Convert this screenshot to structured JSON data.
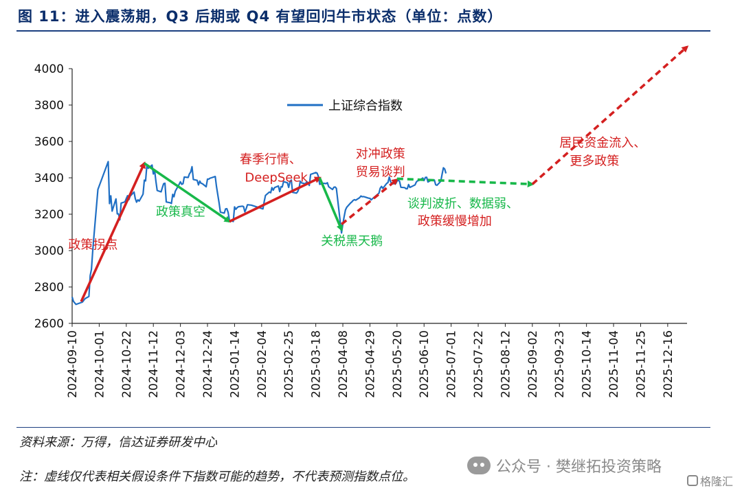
{
  "figure": {
    "title": "图 11：进入震荡期，Q3 后期或 Q4 有望回归牛市状态（单位：点数）",
    "source": "资料来源：万得，信达证券研发中心",
    "note": "注：虚线仅代表相关假设条件下指数可能的趋势，不代表预测指数点位。",
    "watermark": "公众号 · 樊继拓投资策略",
    "corner_label": "格隆汇",
    "watermark_icon": "wechat-icon",
    "corner_icon": "gelonghui-icon"
  },
  "chart_data": {
    "type": "line",
    "ylim": [
      2600,
      4000
    ],
    "yticks": [
      "2600",
      "2800",
      "3000",
      "3200",
      "3400",
      "3600",
      "3800",
      "4000"
    ],
    "x_start": "2024-09-10",
    "x_end": "2025-12-31",
    "xticks": [
      "2024-09-10",
      "2024-10-01",
      "2024-10-22",
      "2024-11-12",
      "2024-12-03",
      "2024-12-24",
      "2025-01-14",
      "2025-02-04",
      "2025-02-25",
      "2025-03-18",
      "2025-04-08",
      "2025-04-29",
      "2025-05-20",
      "2025-06-10",
      "2025-07-01",
      "2025-07-22",
      "2025-08-12",
      "2025-09-02",
      "2025-09-23",
      "2025-10-14",
      "2025-11-04",
      "2025-11-25",
      "2025-12-16"
    ],
    "legend": {
      "label": "上证综合指数",
      "position": "top-center"
    },
    "series": [
      {
        "name": "上证综合指数",
        "color": "#1f6fc4",
        "points": [
          [
            "2024-09-10",
            2745
          ],
          [
            "2024-09-11",
            2721
          ],
          [
            "2024-09-13",
            2704
          ],
          [
            "2024-09-18",
            2717
          ],
          [
            "2024-09-20",
            2736
          ],
          [
            "2024-09-23",
            2748
          ],
          [
            "2024-09-24",
            2863
          ],
          [
            "2024-09-25",
            2897
          ],
          [
            "2024-09-26",
            3000
          ],
          [
            "2024-09-27",
            3087
          ],
          [
            "2024-09-30",
            3336
          ],
          [
            "2024-10-08",
            3489
          ],
          [
            "2024-10-09",
            3258
          ],
          [
            "2024-10-10",
            3301
          ],
          [
            "2024-10-11",
            3217
          ],
          [
            "2024-10-14",
            3284
          ],
          [
            "2024-10-15",
            3202
          ],
          [
            "2024-10-16",
            3202
          ],
          [
            "2024-10-17",
            3169
          ],
          [
            "2024-10-18",
            3261
          ],
          [
            "2024-10-21",
            3268
          ],
          [
            "2024-10-22",
            3286
          ],
          [
            "2024-10-23",
            3302
          ],
          [
            "2024-10-24",
            3280
          ],
          [
            "2024-10-25",
            3299
          ],
          [
            "2024-10-28",
            3322
          ],
          [
            "2024-10-29",
            3286
          ],
          [
            "2024-10-30",
            3266
          ],
          [
            "2024-10-31",
            3279
          ],
          [
            "2024-11-01",
            3272
          ],
          [
            "2024-11-04",
            3310
          ],
          [
            "2024-11-05",
            3387
          ],
          [
            "2024-11-06",
            3383
          ],
          [
            "2024-11-07",
            3470
          ],
          [
            "2024-11-08",
            3452
          ],
          [
            "2024-11-11",
            3470
          ],
          [
            "2024-11-12",
            3421
          ],
          [
            "2024-11-13",
            3439
          ],
          [
            "2024-11-14",
            3379
          ],
          [
            "2024-11-15",
            3330
          ],
          [
            "2024-11-18",
            3323
          ],
          [
            "2024-11-19",
            3346
          ],
          [
            "2024-11-20",
            3368
          ],
          [
            "2024-11-21",
            3370
          ],
          [
            "2024-11-22",
            3267
          ],
          [
            "2024-11-25",
            3263
          ],
          [
            "2024-11-26",
            3259
          ],
          [
            "2024-11-27",
            3309
          ],
          [
            "2024-11-28",
            3296
          ],
          [
            "2024-11-29",
            3326
          ],
          [
            "2024-12-02",
            3364
          ],
          [
            "2024-12-03",
            3378
          ],
          [
            "2024-12-04",
            3364
          ],
          [
            "2024-12-05",
            3368
          ],
          [
            "2024-12-06",
            3404
          ],
          [
            "2024-12-09",
            3402
          ],
          [
            "2024-12-10",
            3422
          ],
          [
            "2024-12-11",
            3432
          ],
          [
            "2024-12-12",
            3461
          ],
          [
            "2024-12-13",
            3391
          ],
          [
            "2024-12-16",
            3386
          ],
          [
            "2024-12-17",
            3361
          ],
          [
            "2024-12-18",
            3382
          ],
          [
            "2024-12-19",
            3370
          ],
          [
            "2024-12-20",
            3368
          ],
          [
            "2024-12-23",
            3351
          ],
          [
            "2024-12-24",
            3393
          ],
          [
            "2024-12-25",
            3393
          ],
          [
            "2024-12-26",
            3398
          ],
          [
            "2024-12-27",
            3400
          ],
          [
            "2024-12-30",
            3407
          ],
          [
            "2024-12-31",
            3352
          ],
          [
            "2025-01-02",
            3262
          ],
          [
            "2025-01-03",
            3211
          ],
          [
            "2025-01-06",
            3206
          ],
          [
            "2025-01-07",
            3229
          ],
          [
            "2025-01-08",
            3230
          ],
          [
            "2025-01-09",
            3211
          ],
          [
            "2025-01-10",
            3168
          ],
          [
            "2025-01-13",
            3160
          ],
          [
            "2025-01-14",
            3240
          ],
          [
            "2025-01-15",
            3227
          ],
          [
            "2025-01-16",
            3236
          ],
          [
            "2025-01-17",
            3241
          ],
          [
            "2025-01-20",
            3244
          ],
          [
            "2025-01-21",
            3242
          ],
          [
            "2025-01-22",
            3213
          ],
          [
            "2025-01-23",
            3230
          ],
          [
            "2025-01-24",
            3252
          ],
          [
            "2025-01-27",
            3250
          ],
          [
            "2025-02-05",
            3229
          ],
          [
            "2025-02-06",
            3270
          ],
          [
            "2025-02-07",
            3303
          ],
          [
            "2025-02-10",
            3322
          ],
          [
            "2025-02-11",
            3318
          ],
          [
            "2025-02-12",
            3346
          ],
          [
            "2025-02-13",
            3332
          ],
          [
            "2025-02-14",
            3346
          ],
          [
            "2025-02-17",
            3355
          ],
          [
            "2025-02-18",
            3324
          ],
          [
            "2025-02-19",
            3351
          ],
          [
            "2025-02-20",
            3350
          ],
          [
            "2025-02-21",
            3379
          ],
          [
            "2025-02-24",
            3373
          ],
          [
            "2025-02-25",
            3347
          ],
          [
            "2025-02-26",
            3380
          ],
          [
            "2025-02-27",
            3388
          ],
          [
            "2025-02-28",
            3320
          ],
          [
            "2025-03-03",
            3316
          ],
          [
            "2025-03-04",
            3325
          ],
          [
            "2025-03-05",
            3342
          ],
          [
            "2025-03-06",
            3381
          ],
          [
            "2025-03-07",
            3372
          ],
          [
            "2025-03-10",
            3367
          ],
          [
            "2025-03-11",
            3379
          ],
          [
            "2025-03-12",
            3372
          ],
          [
            "2025-03-13",
            3358
          ],
          [
            "2025-03-14",
            3419
          ],
          [
            "2025-03-17",
            3426
          ],
          [
            "2025-03-18",
            3429
          ],
          [
            "2025-03-19",
            3426
          ],
          [
            "2025-03-20",
            3408
          ],
          [
            "2025-03-21",
            3364
          ],
          [
            "2025-03-24",
            3370
          ],
          [
            "2025-03-25",
            3369
          ],
          [
            "2025-03-26",
            3368
          ],
          [
            "2025-03-27",
            3373
          ],
          [
            "2025-03-28",
            3351
          ],
          [
            "2025-03-31",
            3336
          ],
          [
            "2025-04-01",
            3348
          ],
          [
            "2025-04-02",
            3350
          ],
          [
            "2025-04-03",
            3342
          ],
          [
            "2025-04-07",
            3097
          ],
          [
            "2025-04-08",
            3145
          ],
          [
            "2025-04-09",
            3186
          ],
          [
            "2025-04-10",
            3223
          ],
          [
            "2025-04-11",
            3238
          ],
          [
            "2025-04-14",
            3262
          ],
          [
            "2025-04-15",
            3268
          ],
          [
            "2025-04-16",
            3276
          ],
          [
            "2025-04-17",
            3280
          ],
          [
            "2025-04-18",
            3277
          ],
          [
            "2025-04-21",
            3291
          ],
          [
            "2025-04-22",
            3300
          ],
          [
            "2025-04-23",
            3296
          ],
          [
            "2025-04-24",
            3297
          ],
          [
            "2025-04-25",
            3295
          ],
          [
            "2025-04-28",
            3288
          ],
          [
            "2025-04-29",
            3287
          ],
          [
            "2025-04-30",
            3279
          ],
          [
            "2025-05-06",
            3316
          ],
          [
            "2025-05-07",
            3343
          ],
          [
            "2025-05-08",
            3353
          ],
          [
            "2025-05-09",
            3342
          ],
          [
            "2025-05-12",
            3369
          ],
          [
            "2025-05-13",
            3374
          ],
          [
            "2025-05-14",
            3404
          ],
          [
            "2025-05-15",
            3380
          ],
          [
            "2025-05-16",
            3367
          ],
          [
            "2025-05-19",
            3368
          ],
          [
            "2025-05-20",
            3381
          ],
          [
            "2025-05-21",
            3388
          ],
          [
            "2025-05-22",
            3380
          ],
          [
            "2025-05-23",
            3348
          ],
          [
            "2025-05-26",
            3346
          ],
          [
            "2025-05-27",
            3340
          ],
          [
            "2025-05-28",
            3340
          ],
          [
            "2025-05-29",
            3363
          ],
          [
            "2025-05-30",
            3347
          ],
          [
            "2025-06-03",
            3361
          ],
          [
            "2025-06-04",
            3377
          ],
          [
            "2025-06-05",
            3384
          ],
          [
            "2025-06-06",
            3385
          ],
          [
            "2025-06-09",
            3399
          ],
          [
            "2025-06-10",
            3385
          ],
          [
            "2025-06-11",
            3402
          ],
          [
            "2025-06-12",
            3403
          ],
          [
            "2025-06-13",
            3377
          ],
          [
            "2025-06-16",
            3389
          ],
          [
            "2025-06-17",
            3387
          ],
          [
            "2025-06-18",
            3388
          ],
          [
            "2025-06-19",
            3362
          ],
          [
            "2025-06-20",
            3359
          ],
          [
            "2025-06-23",
            3381
          ],
          [
            "2025-06-24",
            3420
          ],
          [
            "2025-06-25",
            3455
          ],
          [
            "2025-06-26",
            3448
          ],
          [
            "2025-06-27",
            3424
          ]
        ]
      }
    ],
    "annotations": [
      {
        "text": "政策拐点",
        "color": "#d42020",
        "x": "2024-09-07",
        "y": 3010
      },
      {
        "text": "政策真空",
        "color": "#18b84a",
        "x": "2024-11-14",
        "y": 3190
      },
      {
        "text": "春季行情、",
        "color": "#d42020",
        "x": "2025-01-18",
        "y": 3480
      },
      {
        "text": "DeepSeek",
        "color": "#d42020",
        "x": "2025-01-22",
        "y": 3380
      },
      {
        "text": "关税黑天鹅",
        "color": "#18b84a",
        "x": "2025-03-22",
        "y": 3030
      },
      {
        "text": "对冲政策",
        "color": "#d42020",
        "x": "2025-04-18",
        "y": 3510
      },
      {
        "text": "贸易谈判",
        "color": "#d42020",
        "x": "2025-04-18",
        "y": 3410
      },
      {
        "text": "谈判波折、数据弱、",
        "color": "#18b84a",
        "x": "2025-05-28",
        "y": 3235
      },
      {
        "text": "政策缓慢增加",
        "color": "#d42020",
        "x": "2025-06-05",
        "y": 3140
      },
      {
        "text": "居民资金流入、",
        "color": "#d42020",
        "x": "2025-09-23",
        "y": 3570
      },
      {
        "text": "更多政策",
        "color": "#d42020",
        "x": "2025-10-01",
        "y": 3470
      }
    ],
    "arrows": [
      {
        "from": [
          "2024-09-17",
          2720
        ],
        "to": [
          "2024-11-05",
          3480
        ],
        "color": "#d42020",
        "style": "solid"
      },
      {
        "from": [
          "2024-11-05",
          3480
        ],
        "to": [
          "2025-01-10",
          3160
        ],
        "color": "#18b84a",
        "style": "solid"
      },
      {
        "from": [
          "2025-01-10",
          3160
        ],
        "to": [
          "2025-03-21",
          3400
        ],
        "color": "#d42020",
        "style": "solid"
      },
      {
        "from": [
          "2025-03-21",
          3400
        ],
        "to": [
          "2025-04-07",
          3115
        ],
        "color": "#18b84a",
        "style": "solid"
      },
      {
        "from": [
          "2025-04-07",
          3145
        ],
        "to": [
          "2025-05-20",
          3390
        ],
        "color": "#d42020",
        "style": "dashed"
      },
      {
        "from": [
          "2025-05-20",
          3395
        ],
        "to": [
          "2025-09-02",
          3365
        ],
        "color": "#18b84a",
        "style": "dashed"
      },
      {
        "from": [
          "2025-09-02",
          3365
        ],
        "to": [
          "2025-12-31",
          4120
        ],
        "color": "#d42020",
        "style": "dashed"
      }
    ]
  }
}
